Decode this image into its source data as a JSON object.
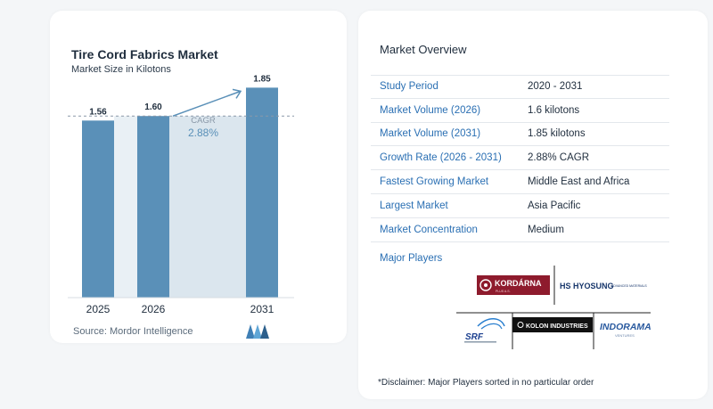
{
  "chart_card": {
    "title": "Tire Cord Fabrics Market",
    "subtitle": "Market Size in Kilotons",
    "source": "Source:  Mordor Intelligence"
  },
  "chart_data": {
    "type": "bar",
    "title": "Tire Cord Fabrics Market",
    "subtitle": "Market Size in Kilotons",
    "categories": [
      "2025",
      "2026",
      "2031"
    ],
    "values": [
      1.56,
      1.6,
      1.85
    ],
    "value_labels": [
      "1.56",
      "1.60",
      "1.85"
    ],
    "ylim": [
      0,
      1.9
    ],
    "reference_line": 1.6,
    "annotation": {
      "label": "CAGR",
      "value": "2.88%"
    },
    "colors": {
      "bar": "#5a90b8",
      "gap": "#dbe6ee",
      "arrow": "#5a90b8"
    }
  },
  "overview": {
    "title": "Market Overview",
    "rows": [
      {
        "label": "Study Period",
        "value": "2020 - 2031"
      },
      {
        "label": "Market Volume (2026)",
        "value": "1.6 kilotons"
      },
      {
        "label": "Market Volume (2031)",
        "value": "1.85 kilotons"
      },
      {
        "label": "Growth Rate (2026 - 2031)",
        "value": "2.88% CAGR"
      },
      {
        "label": "Fastest Growing Market",
        "value": "Middle East and Africa"
      },
      {
        "label": "Largest Market",
        "value": "Asia Pacific"
      },
      {
        "label": "Market Concentration",
        "value": "Medium"
      }
    ],
    "players_title": "Major Players",
    "players": [
      "KORDÁRNA",
      "HYOSUNG",
      "SRF",
      "KOLON INDUSTRIES",
      "INDORAMA"
    ],
    "players_sub": {
      "kordarna": "PLUS A.S.",
      "hyosung_prefix": "HS",
      "hyosung_sub": "ADVANCED MATERIALS",
      "indorama_sub": "VENTURES"
    },
    "disclaimer": "*Disclaimer: Major Players sorted in no particular order"
  }
}
